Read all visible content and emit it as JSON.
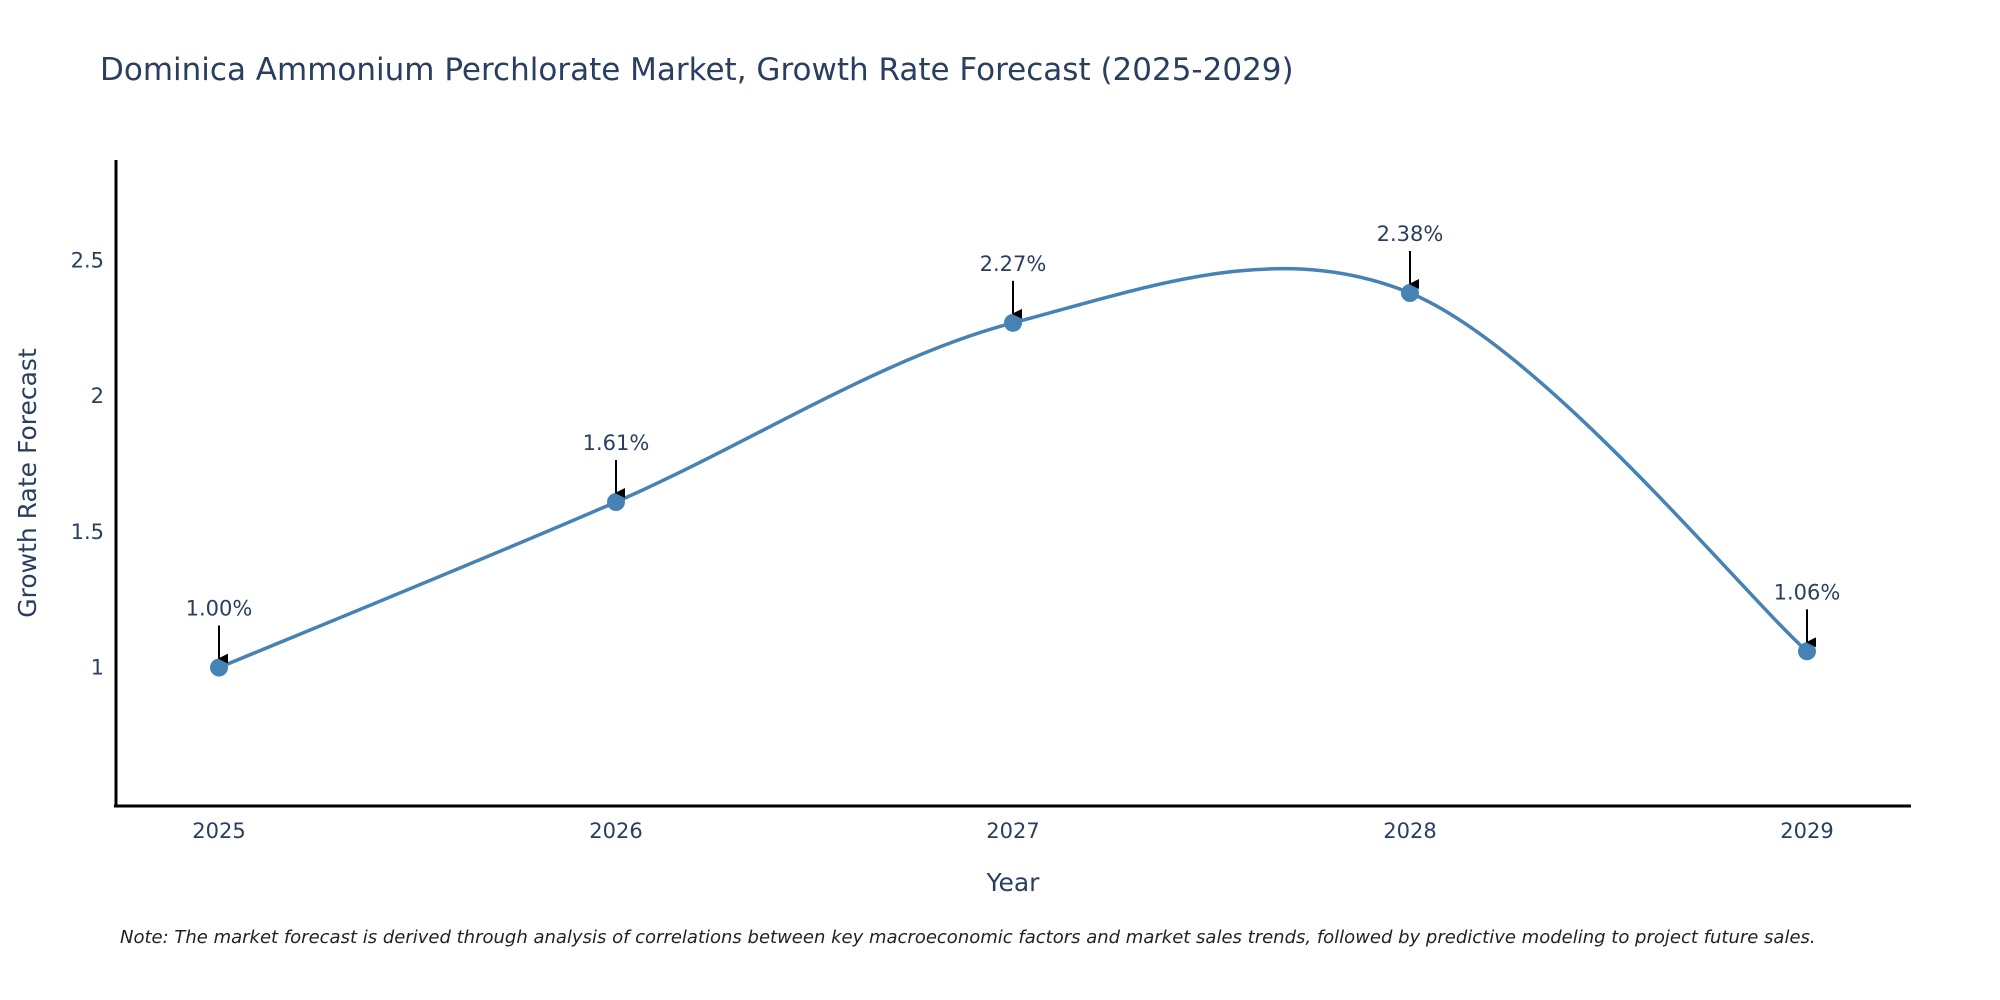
{
  "chart_data": {
    "type": "line",
    "title": "Dominica Ammonium Perchlorate Market, Growth Rate Forecast (2025-2029)",
    "xlabel": "Year",
    "ylabel": "Growth Rate Forecast",
    "categories": [
      "2025",
      "2026",
      "2027",
      "2028",
      "2029"
    ],
    "series": [
      {
        "name": "Growth Rate Forecast",
        "values": [
          1.0,
          1.61,
          2.27,
          2.38,
          1.06
        ],
        "labels": [
          "1.00%",
          "1.61%",
          "2.27%",
          "2.38%",
          "1.06%"
        ]
      }
    ],
    "ylim": [
      0.49,
      2.87
    ],
    "yticks": [
      1,
      1.5,
      2,
      2.5
    ],
    "ytick_labels": [
      "1",
      "1.5",
      "2",
      "2.5"
    ],
    "grid": false,
    "line_shape": "spline",
    "colors": {
      "line": "#4682b4",
      "marker": "#4682b4",
      "arrow": "#000000",
      "axis": "#000000"
    },
    "note": "Note: The market forecast is derived through analysis of correlations between key macroeconomic factors and market sales trends, followed by predictive modeling to project future sales."
  }
}
